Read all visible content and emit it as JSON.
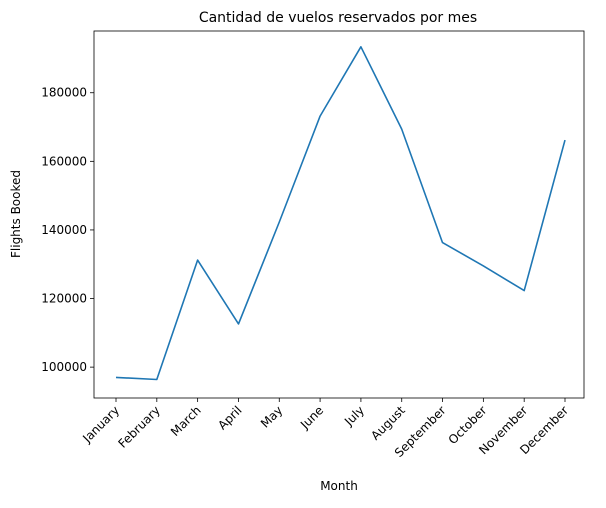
{
  "chart_data": {
    "type": "line",
    "title": "Cantidad de vuelos reservados por mes",
    "xlabel": "Month",
    "ylabel": "Flights Booked",
    "categories": [
      "January",
      "February",
      "March",
      "April",
      "May",
      "June",
      "July",
      "August",
      "September",
      "October",
      "November",
      "December"
    ],
    "series": [
      {
        "color": "#1f77b4",
        "values": [
          97000,
          96400,
          131200,
          112600,
          142300,
          173200,
          193400,
          169400,
          136300,
          129500,
          122300,
          166200
        ]
      }
    ],
    "ylim": [
      91000,
      198000
    ],
    "yticks": [
      100000,
      120000,
      140000,
      160000,
      180000
    ],
    "grid": false,
    "legend": "none"
  }
}
